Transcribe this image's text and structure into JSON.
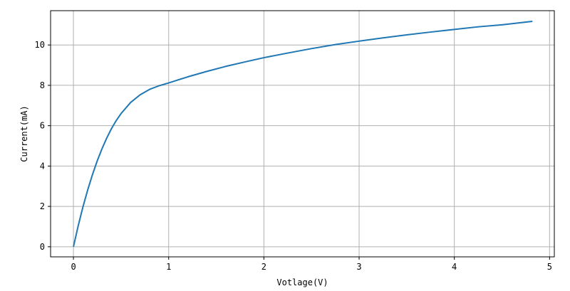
{
  "chart_data": {
    "type": "line",
    "title": "",
    "xlabel": "Votlage(V)",
    "ylabel": "Current(mA)",
    "xlim": [
      -0.24,
      5.05
    ],
    "ylim": [
      -0.5,
      11.7
    ],
    "xticks": [
      0,
      1,
      2,
      3,
      4,
      5
    ],
    "yticks": [
      0,
      2,
      4,
      6,
      8,
      10
    ],
    "x_tick_labels": [
      "0",
      "1",
      "2",
      "3",
      "4",
      "5"
    ],
    "y_tick_labels": [
      "0",
      "2",
      "4",
      "6",
      "8",
      "10"
    ],
    "grid": true,
    "legend": "none",
    "line_color": "#1f77b4",
    "grid_color": "#b0b0b0",
    "series": [
      {
        "x": [
          0.0,
          0.05,
          0.1,
          0.15,
          0.2,
          0.25,
          0.3,
          0.35,
          0.4,
          0.45,
          0.5,
          0.6,
          0.7,
          0.8,
          0.9,
          1.0,
          1.2,
          1.4,
          1.6,
          1.8,
          2.0,
          2.25,
          2.5,
          2.75,
          3.0,
          3.25,
          3.5,
          3.75,
          4.0,
          4.25,
          4.5,
          4.82
        ],
        "y": [
          0.0,
          1.04,
          1.98,
          2.82,
          3.58,
          4.26,
          4.86,
          5.39,
          5.86,
          6.26,
          6.6,
          7.15,
          7.53,
          7.8,
          7.98,
          8.12,
          8.42,
          8.69,
          8.94,
          9.16,
          9.37,
          9.6,
          9.82,
          10.02,
          10.19,
          10.35,
          10.5,
          10.64,
          10.77,
          10.9,
          11.0,
          11.17
        ]
      }
    ]
  }
}
